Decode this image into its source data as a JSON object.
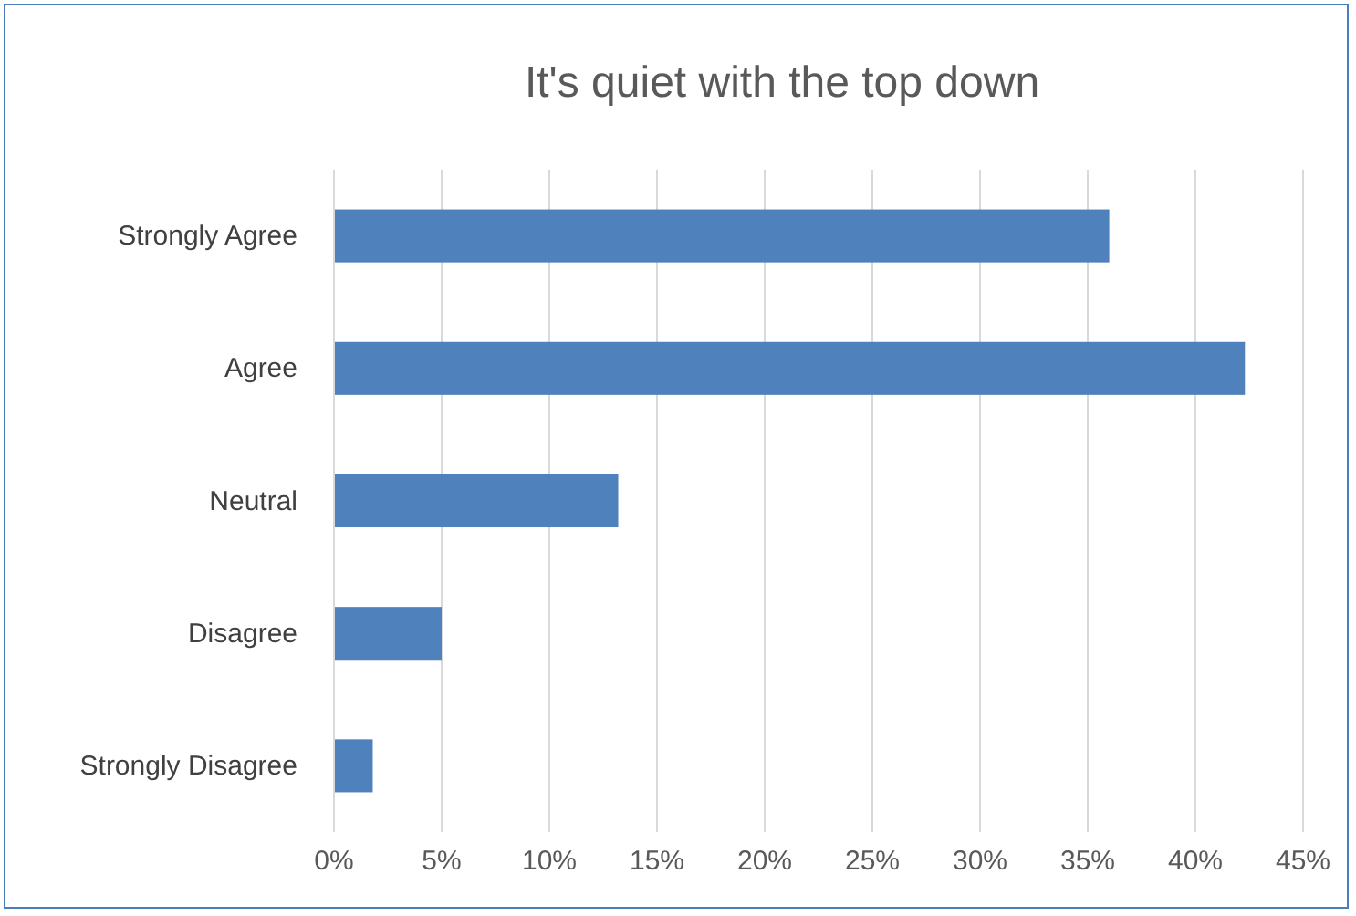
{
  "chart_data": {
    "type": "bar",
    "orientation": "horizontal",
    "title": "It's quiet with the top down",
    "categories": [
      "Strongly Agree",
      "Agree",
      "Neutral",
      "Disagree",
      "Strongly Disagree"
    ],
    "values": [
      36,
      42.3,
      13.2,
      5.0,
      1.8
    ],
    "color": "#4f81bd",
    "xlim": [
      0,
      45
    ],
    "xticks": [
      {
        "value": 0,
        "label": "0%"
      },
      {
        "value": 5,
        "label": "5%"
      },
      {
        "value": 10,
        "label": "10%"
      },
      {
        "value": 15,
        "label": "15%"
      },
      {
        "value": 20,
        "label": "20%"
      },
      {
        "value": 25,
        "label": "25%"
      },
      {
        "value": 30,
        "label": "30%"
      },
      {
        "value": 35,
        "label": "35%"
      },
      {
        "value": 40,
        "label": "40%"
      },
      {
        "value": 45,
        "label": "45%"
      }
    ],
    "grid": "x"
  }
}
